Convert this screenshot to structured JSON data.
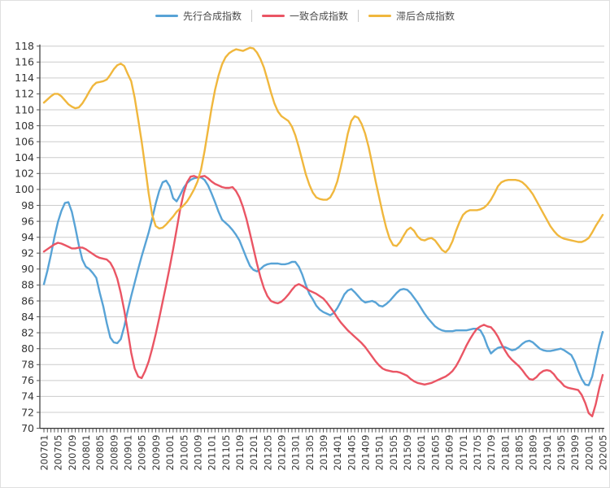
{
  "colors": {
    "grid": "#cccccc",
    "axis": "#333333",
    "tick": "#555555",
    "text": "#333333"
  },
  "legend": {
    "separator": "|"
  },
  "chart_data": {
    "type": "line",
    "title": "",
    "xlabel": "",
    "ylabel": "",
    "grid": true,
    "legend_position": "top",
    "x_label_every": 4,
    "y_axis": {
      "min": 70,
      "max": 118,
      "step": 2,
      "ticks": [
        70,
        72,
        74,
        76,
        78,
        80,
        82,
        84,
        86,
        88,
        90,
        92,
        94,
        96,
        98,
        100,
        102,
        104,
        106,
        108,
        110,
        112,
        114,
        116,
        118
      ]
    },
    "x_categories": [
      "200701",
      "200702",
      "200703",
      "200704",
      "200705",
      "200706",
      "200707",
      "200708",
      "200709",
      "200710",
      "200711",
      "200712",
      "200801",
      "200802",
      "200803",
      "200804",
      "200805",
      "200806",
      "200807",
      "200808",
      "200809",
      "200810",
      "200811",
      "200812",
      "200901",
      "200902",
      "200903",
      "200904",
      "200905",
      "200906",
      "200907",
      "200908",
      "200909",
      "200910",
      "200911",
      "200912",
      "201001",
      "201002",
      "201003",
      "201004",
      "201005",
      "201006",
      "201007",
      "201008",
      "201009",
      "201010",
      "201011",
      "201012",
      "201101",
      "201102",
      "201103",
      "201104",
      "201105",
      "201106",
      "201107",
      "201108",
      "201109",
      "201110",
      "201111",
      "201112",
      "201201",
      "201202",
      "201203",
      "201204",
      "201205",
      "201206",
      "201207",
      "201208",
      "201209",
      "201210",
      "201211",
      "201212",
      "201301",
      "201302",
      "201303",
      "201304",
      "201305",
      "201306",
      "201307",
      "201308",
      "201309",
      "201310",
      "201311",
      "201312",
      "201401",
      "201402",
      "201403",
      "201404",
      "201405",
      "201406",
      "201407",
      "201408",
      "201409",
      "201410",
      "201411",
      "201412",
      "201501",
      "201502",
      "201503",
      "201504",
      "201505",
      "201506",
      "201507",
      "201508",
      "201509",
      "201510",
      "201511",
      "201512",
      "201601",
      "201602",
      "201603",
      "201604",
      "201605",
      "201606",
      "201607",
      "201608",
      "201609",
      "201610",
      "201611",
      "201612",
      "201701",
      "201702",
      "201703",
      "201704",
      "201705",
      "201706",
      "201707",
      "201708",
      "201709",
      "201710",
      "201711",
      "201712",
      "201801",
      "201802",
      "201803",
      "201804",
      "201805",
      "201806",
      "201807",
      "201808",
      "201809",
      "201810",
      "201811",
      "201812",
      "201901",
      "201902",
      "201903",
      "201904",
      "201905",
      "201906",
      "201907",
      "201908",
      "201909",
      "201910",
      "201911",
      "201912",
      "202001",
      "202002",
      "202003",
      "202004",
      "202005"
    ],
    "series": [
      {
        "name": "先行合成指数",
        "color": "#58a3d6",
        "values": [
          88.1,
          89.8,
          91.8,
          94.0,
          95.9,
          97.3,
          98.3,
          98.4,
          97.2,
          95.2,
          93.0,
          91.2,
          90.3,
          90.0,
          89.5,
          88.9,
          87.0,
          85.3,
          83.2,
          81.4,
          80.8,
          80.7,
          81.2,
          82.8,
          84.8,
          86.6,
          88.3,
          90.0,
          91.6,
          93.1,
          94.6,
          96.3,
          98.2,
          99.8,
          100.9,
          101.1,
          100.4,
          98.9,
          98.5,
          99.3,
          100.2,
          100.8,
          101.2,
          101.4,
          101.5,
          101.5,
          101.2,
          100.5,
          99.5,
          98.4,
          97.2,
          96.2,
          95.8,
          95.4,
          94.9,
          94.3,
          93.6,
          92.5,
          91.4,
          90.4,
          89.9,
          89.7,
          90.0,
          90.4,
          90.6,
          90.7,
          90.7,
          90.7,
          90.6,
          90.6,
          90.7,
          90.9,
          90.9,
          90.3,
          89.3,
          88.0,
          86.9,
          86.2,
          85.4,
          84.9,
          84.6,
          84.4,
          84.2,
          84.5,
          85.1,
          85.9,
          86.8,
          87.3,
          87.5,
          87.1,
          86.6,
          86.1,
          85.8,
          85.9,
          86.0,
          85.8,
          85.4,
          85.3,
          85.6,
          86.0,
          86.5,
          87.0,
          87.4,
          87.5,
          87.4,
          87.0,
          86.4,
          85.8,
          85.1,
          84.4,
          83.8,
          83.3,
          82.8,
          82.5,
          82.3,
          82.2,
          82.2,
          82.2,
          82.3,
          82.3,
          82.3,
          82.3,
          82.4,
          82.5,
          82.5,
          82.3,
          81.5,
          80.3,
          79.4,
          79.8,
          80.1,
          80.2,
          80.2,
          80.0,
          79.8,
          79.9,
          80.2,
          80.6,
          80.9,
          81.0,
          80.8,
          80.4,
          80.0,
          79.8,
          79.7,
          79.7,
          79.8,
          79.9,
          80.0,
          79.8,
          79.5,
          79.2,
          78.4,
          77.2,
          76.2,
          75.5,
          75.4,
          76.5,
          78.5,
          80.5,
          82.1
        ]
      },
      {
        "name": "一致合成指数",
        "color": "#ea5564",
        "values": [
          92.2,
          92.5,
          92.8,
          93.1,
          93.3,
          93.2,
          93.0,
          92.8,
          92.6,
          92.6,
          92.7,
          92.7,
          92.5,
          92.2,
          91.9,
          91.6,
          91.4,
          91.3,
          91.2,
          90.8,
          90.0,
          88.8,
          87.0,
          84.8,
          82.2,
          79.5,
          77.5,
          76.5,
          76.3,
          77.2,
          78.4,
          80.0,
          81.8,
          83.8,
          85.9,
          88.0,
          90.2,
          92.5,
          95.0,
          97.5,
          99.5,
          100.9,
          101.6,
          101.7,
          101.5,
          101.6,
          101.7,
          101.4,
          101.0,
          100.7,
          100.5,
          100.3,
          100.2,
          100.2,
          100.3,
          99.8,
          99.0,
          97.8,
          96.3,
          94.5,
          92.6,
          90.7,
          89.0,
          87.6,
          86.6,
          86.0,
          85.8,
          85.7,
          85.9,
          86.3,
          86.8,
          87.4,
          87.9,
          88.1,
          87.9,
          87.6,
          87.3,
          87.1,
          86.9,
          86.6,
          86.3,
          85.8,
          85.2,
          84.6,
          83.9,
          83.3,
          82.8,
          82.3,
          81.9,
          81.5,
          81.1,
          80.7,
          80.2,
          79.6,
          79.0,
          78.4,
          77.9,
          77.5,
          77.3,
          77.2,
          77.1,
          77.1,
          77.0,
          76.8,
          76.6,
          76.2,
          75.9,
          75.7,
          75.6,
          75.5,
          75.6,
          75.7,
          75.9,
          76.1,
          76.3,
          76.5,
          76.8,
          77.2,
          77.8,
          78.6,
          79.5,
          80.4,
          81.2,
          81.9,
          82.5,
          82.8,
          83.0,
          82.8,
          82.7,
          82.2,
          81.5,
          80.6,
          79.8,
          79.1,
          78.6,
          78.2,
          77.8,
          77.3,
          76.7,
          76.2,
          76.1,
          76.4,
          76.9,
          77.2,
          77.3,
          77.2,
          76.8,
          76.2,
          75.8,
          75.3,
          75.1,
          75.0,
          74.9,
          74.8,
          74.2,
          73.2,
          71.9,
          71.5,
          73.0,
          75.0,
          76.7
        ]
      },
      {
        "name": "滞后合成指数",
        "color": "#f0b73d",
        "values": [
          110.9,
          111.3,
          111.7,
          112.0,
          112.0,
          111.7,
          111.2,
          110.7,
          110.4,
          110.2,
          110.3,
          110.8,
          111.5,
          112.3,
          113.0,
          113.4,
          113.5,
          113.6,
          113.8,
          114.4,
          115.1,
          115.6,
          115.8,
          115.5,
          114.5,
          113.6,
          111.5,
          108.8,
          106.0,
          102.8,
          99.5,
          96.8,
          95.4,
          95.1,
          95.2,
          95.6,
          96.1,
          96.6,
          97.2,
          97.6,
          98.0,
          98.5,
          99.2,
          100.0,
          101.0,
          102.5,
          104.8,
          107.5,
          110.2,
          112.5,
          114.3,
          115.7,
          116.6,
          117.1,
          117.4,
          117.6,
          117.5,
          117.4,
          117.6,
          117.8,
          117.7,
          117.2,
          116.4,
          115.3,
          113.8,
          112.2,
          110.8,
          109.8,
          109.2,
          108.9,
          108.6,
          107.9,
          106.8,
          105.3,
          103.6,
          101.9,
          100.6,
          99.6,
          99.0,
          98.8,
          98.7,
          98.7,
          99.0,
          99.8,
          101.0,
          102.8,
          104.8,
          107.0,
          108.6,
          109.2,
          109.0,
          108.2,
          107.0,
          105.3,
          103.2,
          101.0,
          99.0,
          97.0,
          95.2,
          93.8,
          93.0,
          92.9,
          93.4,
          94.2,
          94.9,
          95.2,
          94.8,
          94.1,
          93.7,
          93.6,
          93.8,
          93.9,
          93.6,
          93.0,
          92.4,
          92.1,
          92.6,
          93.5,
          94.8,
          95.9,
          96.8,
          97.2,
          97.4,
          97.4,
          97.4,
          97.5,
          97.7,
          98.1,
          98.7,
          99.5,
          100.4,
          100.9,
          101.1,
          101.2,
          101.2,
          101.2,
          101.1,
          100.9,
          100.5,
          100.0,
          99.4,
          98.6,
          97.8,
          97.0,
          96.2,
          95.4,
          94.8,
          94.3,
          94.0,
          93.8,
          93.7,
          93.6,
          93.5,
          93.4,
          93.4,
          93.6,
          93.9,
          94.6,
          95.4,
          96.1,
          96.8
        ]
      }
    ]
  }
}
